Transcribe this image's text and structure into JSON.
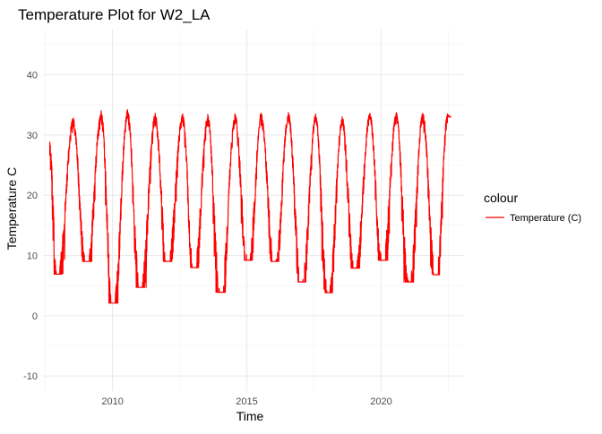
{
  "chart_data": {
    "type": "line",
    "title": "Temperature Plot for W2_LA",
    "xlabel": "Time",
    "ylabel": "Temperature C",
    "xlim": [
      "2007-06-01",
      "2023-02-01"
    ],
    "ylim": [
      -12.5,
      47.5
    ],
    "x_ticks": [
      {
        "date": "2010-01-01",
        "label": "2010"
      },
      {
        "date": "2015-01-01",
        "label": "2015"
      },
      {
        "date": "2020-01-01",
        "label": "2020"
      }
    ],
    "x_minor_ticks": [
      "2007-07-01",
      "2012-07-01",
      "2017-07-01",
      "2022-07-01"
    ],
    "y_ticks": [
      -10,
      0,
      10,
      20,
      30,
      40
    ],
    "y_minor_ticks": [
      -5,
      5,
      15,
      25,
      35,
      45
    ],
    "grid": true,
    "legend": {
      "title": "colour",
      "position": "right",
      "entries": [
        {
          "label": "Temperature (C)",
          "color": "#ff0000"
        }
      ]
    },
    "series": [
      {
        "name": "Temperature (C)",
        "color": "#ff0000",
        "x_start": "2007-09-01",
        "x_end": "2022-08-15",
        "annual_peaks": [
          {
            "date": "2008-07-15",
            "value": 32.8
          },
          {
            "date": "2009-08-01",
            "value": 34.0
          },
          {
            "date": "2010-07-25",
            "value": 34.2
          },
          {
            "date": "2011-08-05",
            "value": 33.6
          },
          {
            "date": "2012-08-10",
            "value": 33.5
          },
          {
            "date": "2013-07-20",
            "value": 33.4
          },
          {
            "date": "2014-07-25",
            "value": 33.5
          },
          {
            "date": "2015-07-15",
            "value": 33.6
          },
          {
            "date": "2016-07-20",
            "value": 33.7
          },
          {
            "date": "2017-07-25",
            "value": 33.5
          },
          {
            "date": "2018-07-20",
            "value": 33.0
          },
          {
            "date": "2019-08-01",
            "value": 33.6
          },
          {
            "date": "2020-07-25",
            "value": 33.7
          },
          {
            "date": "2021-07-20",
            "value": 33.6
          },
          {
            "date": "2022-06-20",
            "value": 33.5
          }
        ],
        "annual_troughs": [
          {
            "date": "2007-12-10",
            "value": 6.9
          },
          {
            "date": "2009-01-15",
            "value": 9.0
          },
          {
            "date": "2010-01-10",
            "value": 2.1
          },
          {
            "date": "2011-01-15",
            "value": 4.7
          },
          {
            "date": "2012-01-20",
            "value": 9.0
          },
          {
            "date": "2013-01-15",
            "value": 8.0
          },
          {
            "date": "2014-01-10",
            "value": 3.9
          },
          {
            "date": "2015-01-20",
            "value": 9.2
          },
          {
            "date": "2016-01-15",
            "value": 9.0
          },
          {
            "date": "2017-01-15",
            "value": 5.6
          },
          {
            "date": "2018-01-10",
            "value": 3.8
          },
          {
            "date": "2019-01-10",
            "value": 7.9
          },
          {
            "date": "2020-01-20",
            "value": 9.2
          },
          {
            "date": "2021-01-15",
            "value": 5.6
          },
          {
            "date": "2022-01-15",
            "value": 6.8
          }
        ],
        "start_value": 28.8,
        "end_value": 33.0
      }
    ]
  }
}
